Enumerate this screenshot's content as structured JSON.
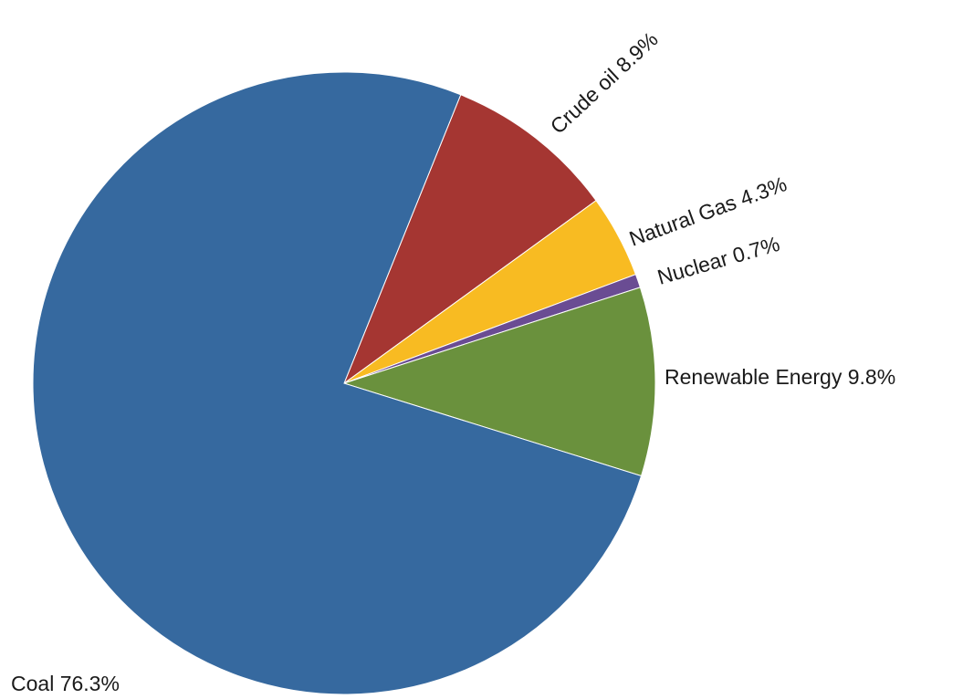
{
  "chart_data": {
    "type": "pie",
    "title": "",
    "start_direction": "clockwise from Coal at the bottom-right",
    "slices": [
      {
        "name": "Crude oil",
        "value": 8.9,
        "label": "Crude oil 8.9%",
        "color": "#a53632"
      },
      {
        "name": "Natural Gas",
        "value": 4.3,
        "label": "Natural Gas 4.3%",
        "color": "#f8bb22"
      },
      {
        "name": "Nuclear",
        "value": 0.7,
        "label": "Nuclear 0.7%",
        "color": "#6a4c93"
      },
      {
        "name": "Renewable Energy",
        "value": 9.8,
        "label": "Renewable Energy 9.8%",
        "color": "#6a913d"
      },
      {
        "name": "Coal",
        "value": 76.3,
        "label": "Coal 76.3%",
        "color": "#36699f"
      }
    ]
  }
}
